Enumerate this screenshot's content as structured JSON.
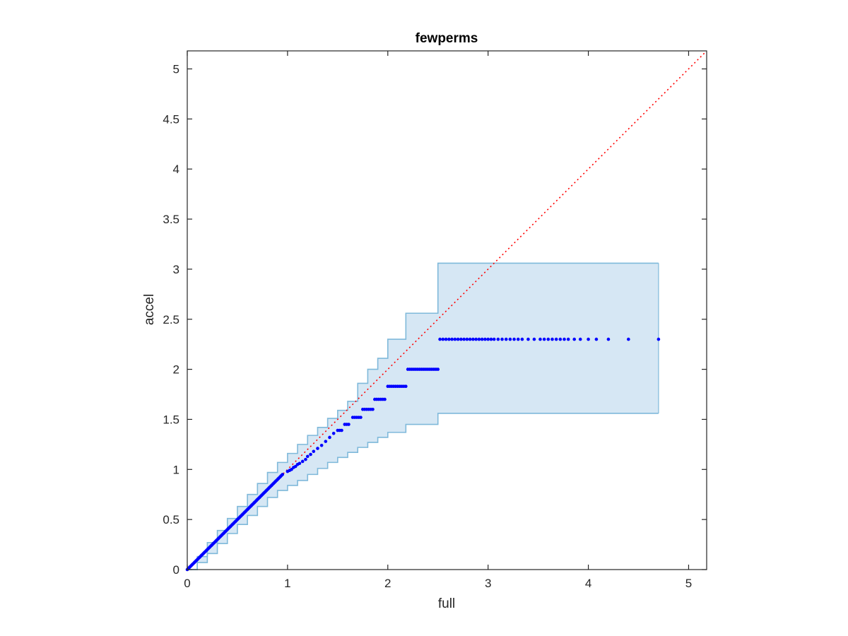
{
  "chart_data": {
    "type": "scatter",
    "title": "fewperms",
    "xlabel": "full",
    "ylabel": "accel",
    "xlim": [
      0,
      5.18
    ],
    "ylim": [
      0,
      5.18
    ],
    "xticks": [
      0,
      1,
      2,
      3,
      4,
      5
    ],
    "yticks": [
      0,
      0.5,
      1,
      1.5,
      2,
      2.5,
      3,
      3.5,
      4,
      4.5,
      5
    ],
    "xtick_labels": [
      "0",
      "1",
      "2",
      "3",
      "4",
      "5"
    ],
    "ytick_labels": [
      "0",
      "0.5",
      "1",
      "1.5",
      "2",
      "2.5",
      "3",
      "3.5",
      "4",
      "4.5",
      "5"
    ],
    "grid": false,
    "colors": {
      "points": "#0000ff",
      "reference_line": "#ff0000",
      "band_fill": "#d6e7f4",
      "band_edge": "#7fb9da",
      "axes": "#262626"
    },
    "reference_line": {
      "style": "dotted",
      "from": [
        0,
        0
      ],
      "to": [
        5.18,
        5.18
      ]
    },
    "band": {
      "upper": [
        [
          0,
          0
        ],
        [
          0.1,
          0.13
        ],
        [
          0.2,
          0.27
        ],
        [
          0.3,
          0.39
        ],
        [
          0.4,
          0.51
        ],
        [
          0.5,
          0.63
        ],
        [
          0.6,
          0.75
        ],
        [
          0.7,
          0.86
        ],
        [
          0.8,
          0.97
        ],
        [
          0.9,
          1.07
        ],
        [
          1.0,
          1.16
        ],
        [
          1.1,
          1.25
        ],
        [
          1.2,
          1.34
        ],
        [
          1.3,
          1.42
        ],
        [
          1.4,
          1.51
        ],
        [
          1.5,
          1.59
        ],
        [
          1.6,
          1.68
        ],
        [
          1.7,
          1.86
        ],
        [
          1.8,
          2.0
        ],
        [
          1.9,
          2.11
        ],
        [
          2.0,
          2.3
        ],
        [
          2.1,
          2.3
        ],
        [
          2.18,
          2.56
        ],
        [
          2.5,
          3.06
        ],
        [
          4.7,
          3.06
        ]
      ],
      "lower": [
        [
          0,
          0
        ],
        [
          0.1,
          0.07
        ],
        [
          0.2,
          0.16
        ],
        [
          0.3,
          0.26
        ],
        [
          0.4,
          0.36
        ],
        [
          0.5,
          0.45
        ],
        [
          0.6,
          0.54
        ],
        [
          0.7,
          0.63
        ],
        [
          0.8,
          0.72
        ],
        [
          0.9,
          0.79
        ],
        [
          1.0,
          0.84
        ],
        [
          1.1,
          0.89
        ],
        [
          1.2,
          0.95
        ],
        [
          1.3,
          1.01
        ],
        [
          1.4,
          1.07
        ],
        [
          1.5,
          1.12
        ],
        [
          1.6,
          1.17
        ],
        [
          1.7,
          1.22
        ],
        [
          1.8,
          1.27
        ],
        [
          1.9,
          1.32
        ],
        [
          2.0,
          1.37
        ],
        [
          2.18,
          1.45
        ],
        [
          2.5,
          1.56
        ],
        [
          4.7,
          1.56
        ]
      ]
    },
    "series": [
      {
        "diagonal": {
          "start": 0,
          "end": 0.95,
          "step": 0.01
        },
        "points": [
          [
            1.0,
            0.98
          ],
          [
            1.02,
            0.99
          ],
          [
            1.04,
            1.0
          ],
          [
            1.06,
            1.02
          ],
          [
            1.08,
            1.03
          ],
          [
            1.1,
            1.05
          ],
          [
            1.12,
            1.06
          ],
          [
            1.15,
            1.08
          ],
          [
            1.18,
            1.1
          ],
          [
            1.2,
            1.13
          ],
          [
            1.23,
            1.15
          ],
          [
            1.26,
            1.18
          ],
          [
            1.3,
            1.21
          ],
          [
            1.34,
            1.24
          ],
          [
            1.38,
            1.28
          ],
          [
            1.42,
            1.32
          ],
          [
            1.46,
            1.36
          ],
          [
            1.5,
            1.39
          ],
          [
            1.52,
            1.39
          ],
          [
            1.54,
            1.39
          ],
          [
            1.57,
            1.45
          ],
          [
            1.59,
            1.45
          ],
          [
            1.61,
            1.45
          ],
          [
            1.65,
            1.52
          ],
          [
            1.67,
            1.52
          ],
          [
            1.69,
            1.52
          ],
          [
            1.71,
            1.52
          ],
          [
            1.73,
            1.52
          ],
          [
            1.75,
            1.6
          ],
          [
            1.77,
            1.6
          ],
          [
            1.79,
            1.6
          ],
          [
            1.81,
            1.6
          ],
          [
            1.83,
            1.6
          ],
          [
            1.85,
            1.6
          ],
          [
            1.87,
            1.7
          ],
          [
            1.89,
            1.7
          ],
          [
            1.91,
            1.7
          ],
          [
            1.93,
            1.7
          ],
          [
            1.95,
            1.7
          ],
          [
            1.97,
            1.7
          ],
          [
            2.0,
            1.83
          ],
          [
            2.02,
            1.83
          ],
          [
            2.04,
            1.83
          ],
          [
            2.06,
            1.83
          ],
          [
            2.08,
            1.83
          ],
          [
            2.1,
            1.83
          ],
          [
            2.12,
            1.83
          ],
          [
            2.14,
            1.83
          ],
          [
            2.16,
            1.83
          ],
          [
            2.18,
            1.83
          ],
          [
            2.2,
            2.0
          ],
          [
            2.22,
            2.0
          ],
          [
            2.24,
            2.0
          ],
          [
            2.26,
            2.0
          ],
          [
            2.28,
            2.0
          ],
          [
            2.3,
            2.0
          ],
          [
            2.32,
            2.0
          ],
          [
            2.34,
            2.0
          ],
          [
            2.36,
            2.0
          ],
          [
            2.38,
            2.0
          ],
          [
            2.4,
            2.0
          ],
          [
            2.42,
            2.0
          ],
          [
            2.44,
            2.0
          ],
          [
            2.46,
            2.0
          ],
          [
            2.48,
            2.0
          ],
          [
            2.5,
            2.0
          ],
          [
            2.52,
            2.3
          ],
          [
            2.55,
            2.3
          ],
          [
            2.58,
            2.3
          ],
          [
            2.61,
            2.3
          ],
          [
            2.64,
            2.3
          ],
          [
            2.67,
            2.3
          ],
          [
            2.7,
            2.3
          ],
          [
            2.73,
            2.3
          ],
          [
            2.76,
            2.3
          ],
          [
            2.79,
            2.3
          ],
          [
            2.82,
            2.3
          ],
          [
            2.85,
            2.3
          ],
          [
            2.88,
            2.3
          ],
          [
            2.91,
            2.3
          ],
          [
            2.94,
            2.3
          ],
          [
            2.97,
            2.3
          ],
          [
            3.0,
            2.3
          ],
          [
            3.03,
            2.3
          ],
          [
            3.06,
            2.3
          ],
          [
            3.1,
            2.3
          ],
          [
            3.14,
            2.3
          ],
          [
            3.18,
            2.3
          ],
          [
            3.22,
            2.3
          ],
          [
            3.26,
            2.3
          ],
          [
            3.3,
            2.3
          ],
          [
            3.34,
            2.3
          ],
          [
            3.4,
            2.3
          ],
          [
            3.46,
            2.3
          ],
          [
            3.52,
            2.3
          ],
          [
            3.56,
            2.3
          ],
          [
            3.6,
            2.3
          ],
          [
            3.64,
            2.3
          ],
          [
            3.68,
            2.3
          ],
          [
            3.72,
            2.3
          ],
          [
            3.76,
            2.3
          ],
          [
            3.8,
            2.3
          ],
          [
            3.86,
            2.3
          ],
          [
            3.92,
            2.3
          ],
          [
            4.0,
            2.3
          ],
          [
            4.08,
            2.3
          ],
          [
            4.2,
            2.3
          ],
          [
            4.4,
            2.3
          ],
          [
            4.7,
            2.3
          ]
        ]
      }
    ]
  }
}
